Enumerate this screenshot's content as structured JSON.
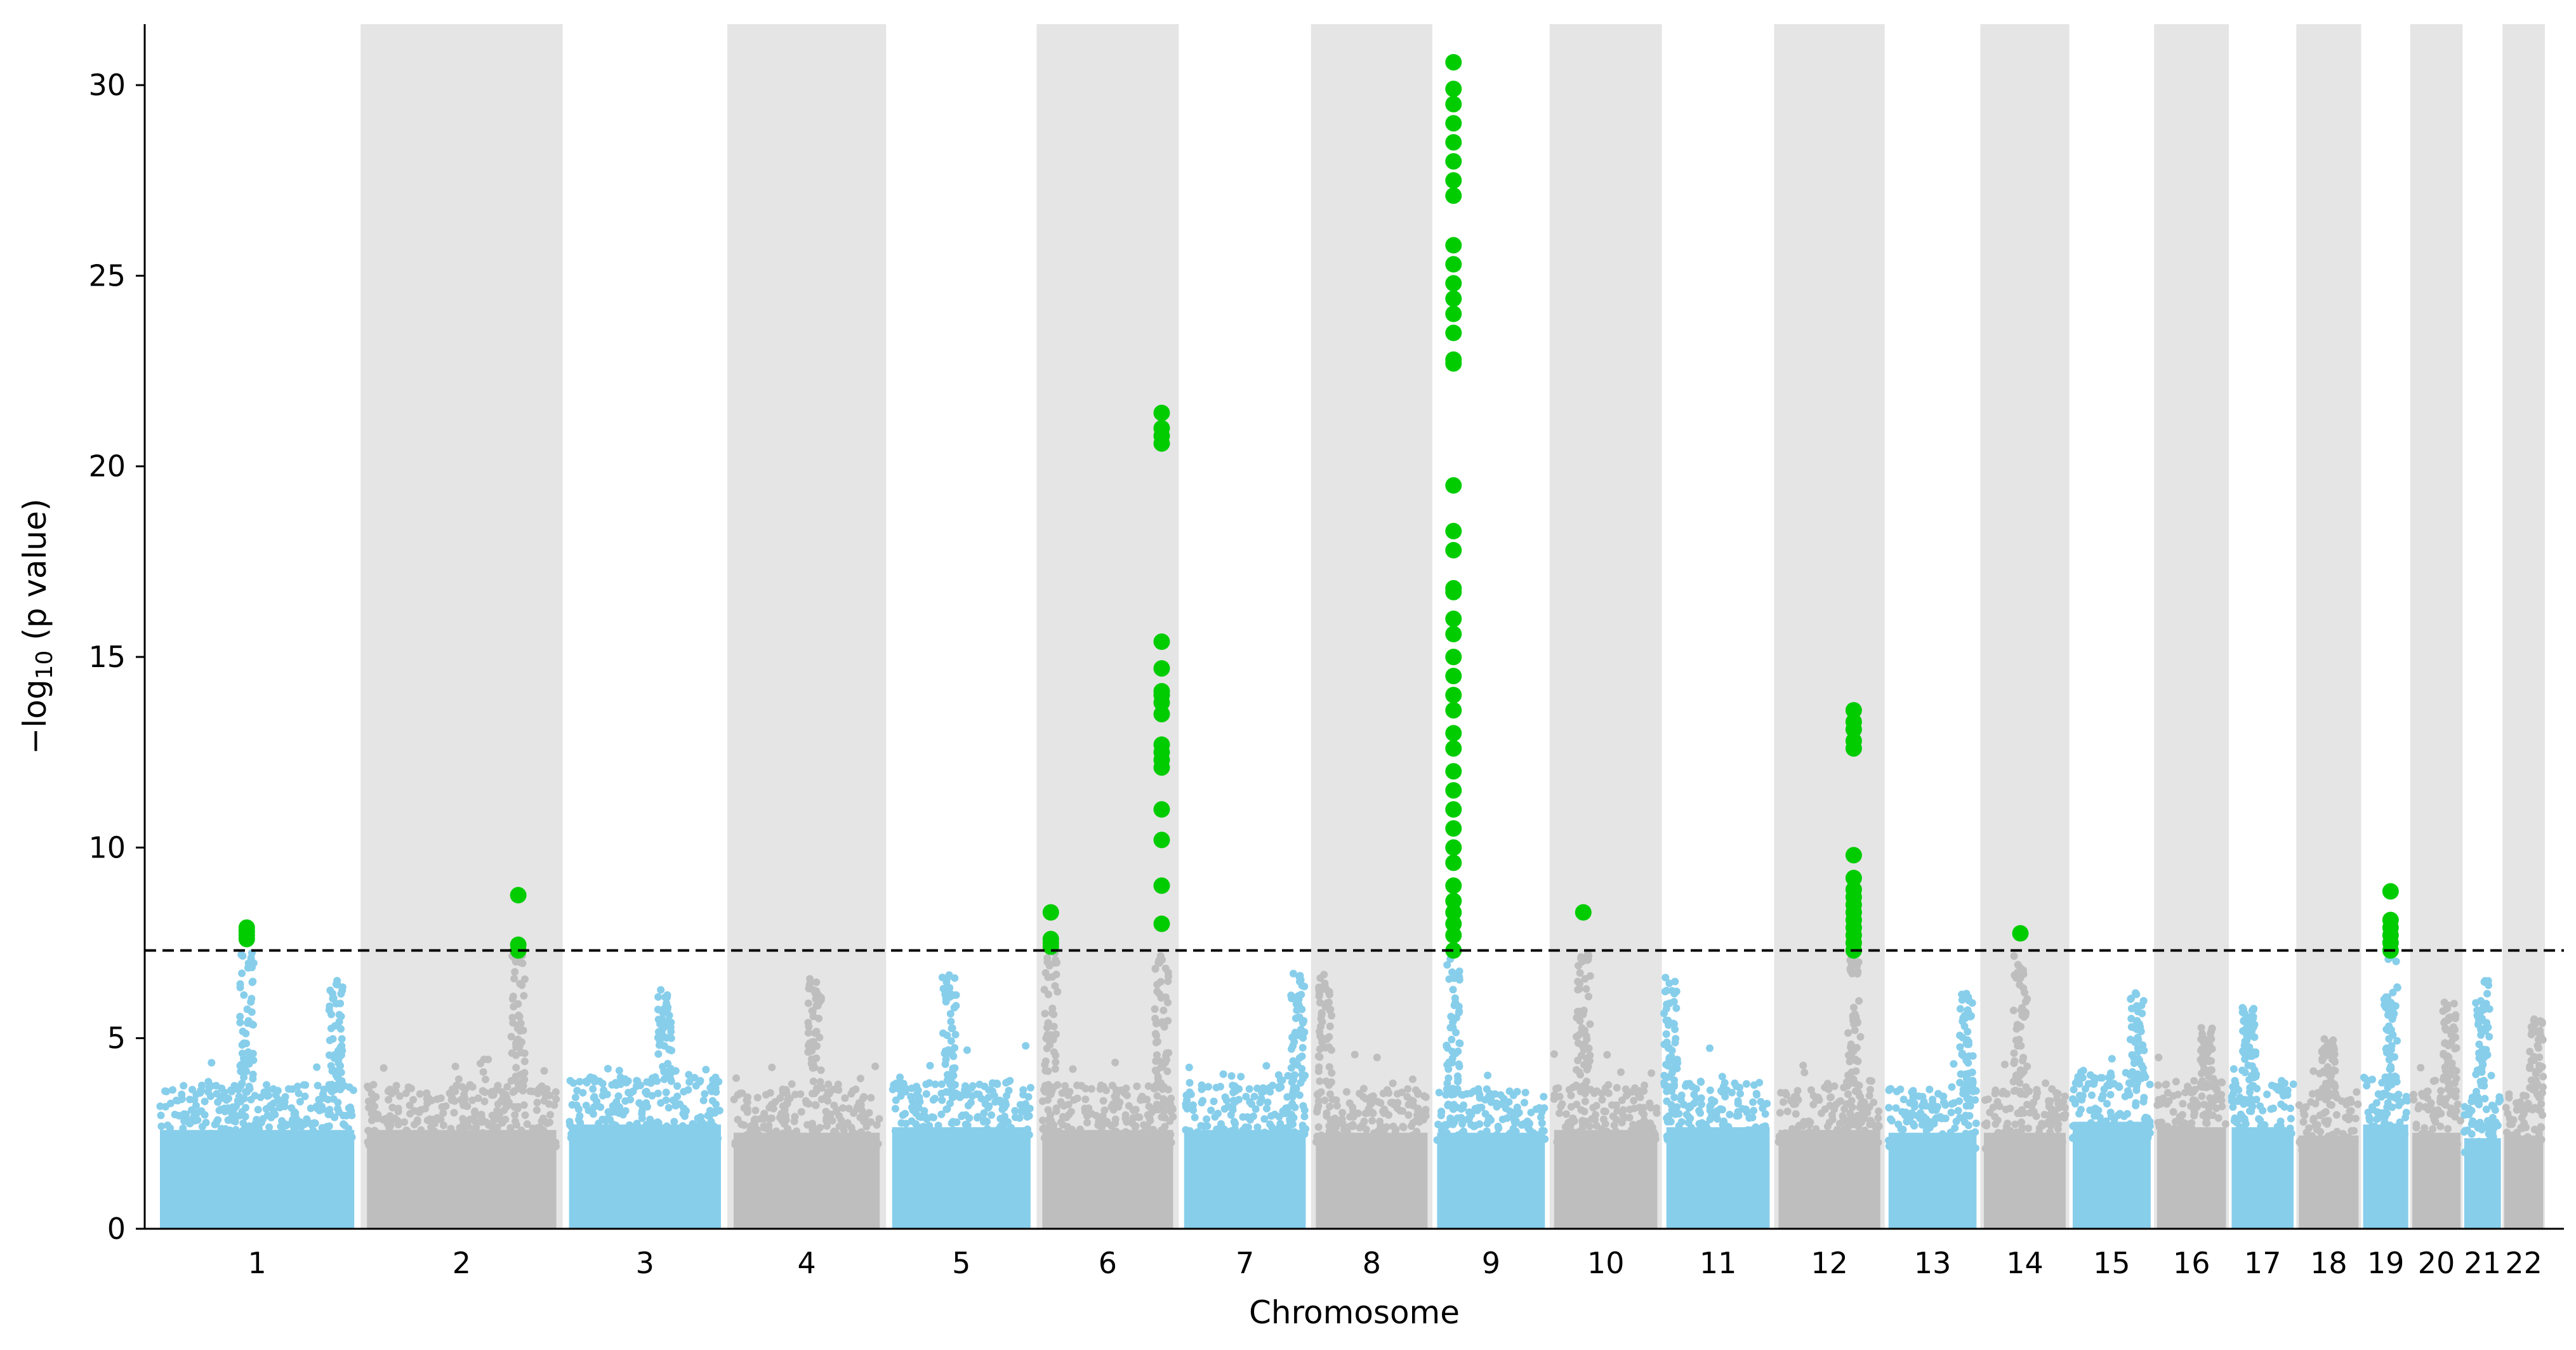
{
  "chart_data": {
    "type": "scatter",
    "subtype": "manhattan",
    "title": "",
    "xlabel": "Chromosome",
    "ylabel_prefix": "−log",
    "ylabel_sub": "10",
    "ylabel_suffix": " (p value)",
    "ylim": [
      0,
      31.6
    ],
    "yticks": [
      0,
      5,
      10,
      15,
      20,
      25,
      30
    ],
    "threshold": 7.3,
    "grid": false,
    "colors": {
      "odd": "#87ceeb",
      "even": "#bebebe",
      "shade": "#e5e5e5",
      "significant": "#00cc00",
      "threshold_line": "#000000"
    },
    "chromosomes": [
      {
        "label": "1",
        "length": 249,
        "bg": 3.6,
        "peaks": [
          {
            "pos": 0.45,
            "max": 7.9,
            "sig": [
              7.6,
              7.7,
              7.8,
              7.9
            ]
          },
          {
            "pos": 0.88,
            "max": 6.6,
            "sig": []
          }
        ]
      },
      {
        "label": "2",
        "length": 243,
        "bg": 3.6,
        "peaks": [
          {
            "pos": 0.78,
            "max": 8.75,
            "sig": [
              7.3,
              7.45,
              8.75
            ]
          }
        ]
      },
      {
        "label": "3",
        "length": 198,
        "bg": 3.8,
        "peaks": [
          {
            "pos": 0.62,
            "max": 6.3,
            "sig": []
          }
        ]
      },
      {
        "label": "4",
        "length": 191,
        "bg": 3.5,
        "peaks": [
          {
            "pos": 0.55,
            "max": 6.6,
            "sig": []
          }
        ]
      },
      {
        "label": "5",
        "length": 181,
        "bg": 3.7,
        "peaks": [
          {
            "pos": 0.42,
            "max": 6.7,
            "sig": []
          }
        ]
      },
      {
        "label": "6",
        "length": 171,
        "bg": 3.6,
        "peaks": [
          {
            "pos": 0.1,
            "max": 8.3,
            "sig": [
              7.4,
              7.5,
              7.6,
              8.3
            ]
          },
          {
            "pos": 0.88,
            "max": 21.4,
            "sig": [
              8.0,
              9.0,
              10.2,
              11.0,
              12.1,
              12.3,
              12.5,
              12.7,
              13.5,
              13.8,
              14.0,
              14.1,
              14.7,
              15.4,
              20.6,
              20.8,
              21.0,
              21.4
            ]
          }
        ]
      },
      {
        "label": "7",
        "length": 159,
        "bg": 3.6,
        "peaks": [
          {
            "pos": 0.9,
            "max": 6.8,
            "sig": []
          }
        ]
      },
      {
        "label": "8",
        "length": 146,
        "bg": 3.5,
        "peaks": [
          {
            "pos": 0.12,
            "max": 6.8,
            "sig": []
          }
        ]
      },
      {
        "label": "9",
        "length": 141,
        "bg": 3.5,
        "peaks": [
          {
            "pos": 0.18,
            "max": 30.6,
            "sig": [
              7.3,
              7.7,
              8.0,
              8.3,
              8.6,
              9.0,
              9.6,
              10.0,
              10.5,
              11.0,
              11.5,
              12.0,
              12.6,
              13.0,
              13.6,
              14.0,
              14.5,
              15.0,
              15.6,
              16.0,
              16.7,
              16.8,
              17.8,
              18.3,
              19.5,
              22.7,
              22.8,
              23.5,
              24.0,
              24.4,
              24.8,
              25.3,
              25.8,
              27.1,
              27.5,
              28.0,
              28.5,
              29.0,
              29.5,
              29.9,
              30.6
            ]
          }
        ]
      },
      {
        "label": "10",
        "length": 135,
        "bg": 3.6,
        "peaks": [
          {
            "pos": 0.3,
            "max": 8.3,
            "sig": [
              8.3
            ]
          }
        ]
      },
      {
        "label": "11",
        "length": 135,
        "bg": 3.7,
        "peaks": [
          {
            "pos": 0.08,
            "max": 6.6,
            "sig": []
          }
        ]
      },
      {
        "label": "12",
        "length": 133,
        "bg": 3.6,
        "peaks": [
          {
            "pos": 0.72,
            "max": 13.6,
            "sig": [
              7.3,
              7.5,
              7.7,
              7.9,
              8.1,
              8.3,
              8.5,
              8.7,
              8.9,
              9.2,
              9.8,
              12.6,
              12.8,
              13.1,
              13.3,
              13.6
            ]
          }
        ]
      },
      {
        "label": "13",
        "length": 115,
        "bg": 3.5,
        "peaks": [
          {
            "pos": 0.85,
            "max": 6.2,
            "sig": []
          }
        ]
      },
      {
        "label": "14",
        "length": 107,
        "bg": 3.5,
        "peaks": [
          {
            "pos": 0.45,
            "max": 7.75,
            "sig": [
              7.75
            ]
          }
        ]
      },
      {
        "label": "15",
        "length": 102,
        "bg": 3.9,
        "peaks": [
          {
            "pos": 0.8,
            "max": 6.2,
            "sig": []
          }
        ]
      },
      {
        "label": "16",
        "length": 90,
        "bg": 3.7,
        "peaks": [
          {
            "pos": 0.7,
            "max": 5.3,
            "sig": []
          }
        ]
      },
      {
        "label": "17",
        "length": 81,
        "bg": 3.7,
        "peaks": [
          {
            "pos": 0.3,
            "max": 5.8,
            "sig": []
          }
        ]
      },
      {
        "label": "18",
        "length": 78,
        "bg": 3.4,
        "peaks": [
          {
            "pos": 0.5,
            "max": 5.0,
            "sig": []
          }
        ]
      },
      {
        "label": "19",
        "length": 59,
        "bg": 3.8,
        "peaks": [
          {
            "pos": 0.6,
            "max": 8.85,
            "sig": [
              7.3,
              7.5,
              7.7,
              7.9,
              8.1,
              8.85
            ]
          }
        ]
      },
      {
        "label": "20",
        "length": 63,
        "bg": 3.5,
        "peaks": [
          {
            "pos": 0.75,
            "max": 6.0,
            "sig": []
          }
        ]
      },
      {
        "label": "21",
        "length": 48,
        "bg": 3.3,
        "peaks": [
          {
            "pos": 0.5,
            "max": 6.6,
            "sig": []
          }
        ]
      },
      {
        "label": "22",
        "length": 51,
        "bg": 3.4,
        "peaks": [
          {
            "pos": 0.8,
            "max": 5.5,
            "sig": []
          }
        ]
      }
    ]
  }
}
